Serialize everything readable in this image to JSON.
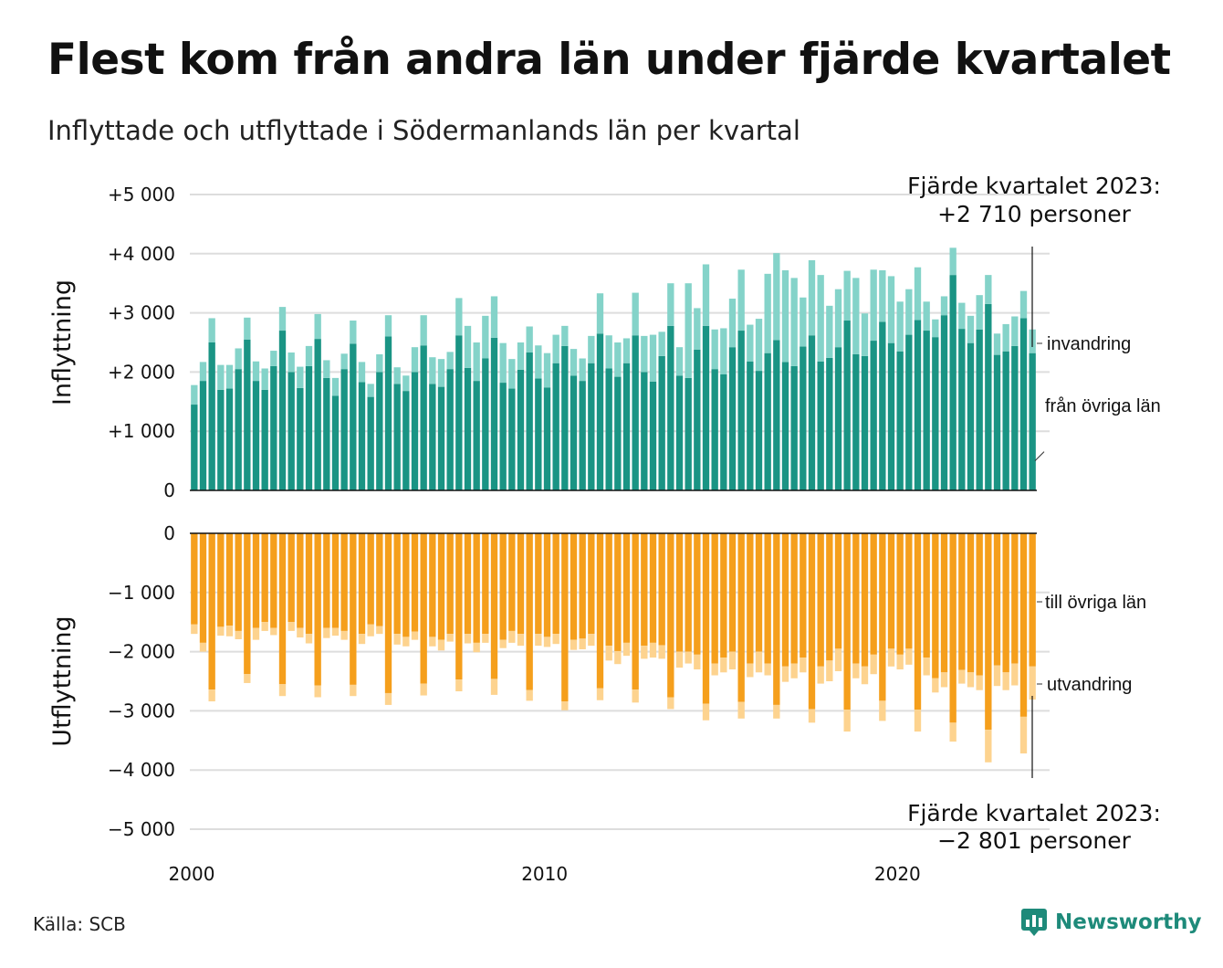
{
  "title": "Flest kom från andra län under fjärde kvartalet",
  "subtitle": "Inflyttade och utflyttade i Södermanlands län per kvartal",
  "source": "Källa: SCB",
  "brand": "Newsworthy",
  "colors": {
    "fran_ovriga_lan": "#1a9484",
    "invandring": "#84d3c9",
    "till_ovriga_lan": "#f59f1c",
    "utvandring": "#fdd38f",
    "brand": "#1e8a7a"
  },
  "chart_data": {
    "type": "bar",
    "stacked": true,
    "grid": true,
    "x_start": "2000 Q1",
    "x_end": "2023 Q4",
    "x_ticks": [
      "2000",
      "2010",
      "2020"
    ],
    "panels": [
      {
        "name": "inflyttning",
        "ylabel": "Inflyttning",
        "ylim": [
          0,
          5000
        ],
        "yticks": [
          "0",
          "+1 000",
          "+2 000",
          "+3 000",
          "+4 000",
          "+5 000"
        ],
        "series": [
          {
            "name": "från övriga län",
            "color": "#1a9484",
            "values": [
              1450,
              1850,
              2500,
              1700,
              1720,
              2050,
              2550,
              1850,
              1700,
              2100,
              2700,
              2000,
              1730,
              2100,
              2560,
              1900,
              1600,
              2050,
              2480,
              1830,
              1580,
              2000,
              2600,
              1800,
              1680,
              2000,
              2450,
              1800,
              1750,
              2050,
              2620,
              2070,
              1850,
              2230,
              2580,
              1820,
              1720,
              2040,
              2330,
              1890,
              1740,
              2150,
              2440,
              1940,
              1850,
              2150,
              2650,
              2060,
              1920,
              2150,
              2620,
              2000,
              1840,
              2270,
              2780,
              1940,
              1900,
              2380,
              2780,
              2050,
              1960,
              2420,
              2700,
              2180,
              2020,
              2320,
              2540,
              2170,
              2100,
              2430,
              2620,
              2180,
              2240,
              2420,
              2870,
              2300,
              2270,
              2530,
              2850,
              2490,
              2350,
              2630,
              2880,
              2700,
              2590,
              2960,
              3640,
              2730,
              2490,
              2720,
              3150,
              2290,
              2350,
              2440,
              2910,
              2320
            ]
          },
          {
            "name": "invandring",
            "color": "#84d3c9",
            "values": [
              330,
              320,
              410,
              420,
              400,
              350,
              370,
              330,
              360,
              260,
              400,
              330,
              360,
              340,
              420,
              300,
              300,
              260,
              390,
              340,
              220,
              300,
              360,
              280,
              260,
              420,
              510,
              450,
              470,
              290,
              630,
              710,
              650,
              720,
              700,
              670,
              500,
              460,
              440,
              560,
              580,
              480,
              340,
              450,
              380,
              460,
              680,
              560,
              580,
              420,
              720,
              610,
              790,
              410,
              720,
              480,
              1600,
              700,
              1040,
              670,
              780,
              820,
              1030,
              620,
              880,
              1340,
              1470,
              1550,
              1490,
              830,
              1270,
              1460,
              880,
              980,
              840,
              1290,
              720,
              1200,
              870,
              1130,
              840,
              770,
              890,
              490,
              300,
              320,
              460,
              440,
              460,
              580,
              490,
              360,
              460,
              500,
              460,
              400
            ]
          }
        ]
      },
      {
        "name": "utflyttning",
        "ylabel": "Utflyttning",
        "ylim": [
          -5000,
          0
        ],
        "yticks": [
          "0",
          "−1 000",
          "−2 000",
          "−3 000",
          "−4 000",
          "−5 000"
        ],
        "series": [
          {
            "name": "till övriga län",
            "color": "#f59f1c",
            "values": [
              -1540,
              -1850,
              -2640,
              -1580,
              -1560,
              -1650,
              -2380,
              -1600,
              -1500,
              -1600,
              -2550,
              -1500,
              -1600,
              -1700,
              -2570,
              -1600,
              -1600,
              -1650,
              -2560,
              -1700,
              -1540,
              -1570,
              -2700,
              -1700,
              -1750,
              -1660,
              -2540,
              -1750,
              -1800,
              -1700,
              -2470,
              -1700,
              -1850,
              -1700,
              -2460,
              -1800,
              -1650,
              -1700,
              -2650,
              -1700,
              -1750,
              -1700,
              -2840,
              -1800,
              -1780,
              -1700,
              -2620,
              -1900,
              -1990,
              -1850,
              -2640,
              -1900,
              -1850,
              -1890,
              -2770,
              -2000,
              -2000,
              -2050,
              -2880,
              -2200,
              -2100,
              -2000,
              -2850,
              -2200,
              -2000,
              -2200,
              -2900,
              -2250,
              -2200,
              -2100,
              -2970,
              -2250,
              -2150,
              -1950,
              -2980,
              -2200,
              -2250,
              -2050,
              -2830,
              -1950,
              -2050,
              -1950,
              -2980,
              -2100,
              -2450,
              -2350,
              -3200,
              -2310,
              -2350,
              -2400,
              -3320,
              -2230,
              -2350,
              -2200,
              -3100,
              -2250
            ]
          },
          {
            "name": "utvandring",
            "color": "#fdd38f",
            "values": [
              -160,
              -150,
              -200,
              -150,
              -180,
              -140,
              -150,
              -200,
              -150,
              -120,
              -200,
              -150,
              -160,
              -160,
              -200,
              -170,
              -130,
              -150,
              -190,
              -170,
              -200,
              -130,
              -200,
              -180,
              -160,
              -140,
              -200,
              -160,
              -180,
              -130,
              -200,
              -160,
              -160,
              -150,
              -270,
              -140,
              -200,
              -200,
              -180,
              -200,
              -170,
              -170,
              -150,
              -170,
              -180,
              -200,
              -200,
              -250,
              -220,
              -220,
              -220,
              -220,
              -250,
              -230,
              -200,
              -270,
              -200,
              -250,
              -280,
              -200,
              -250,
              -300,
              -280,
              -230,
              -350,
              -200,
              -230,
              -260,
              -250,
              -250,
              -230,
              -290,
              -350,
              -380,
              -370,
              -250,
              -300,
              -330,
              -340,
              -300,
              -250,
              -270,
              -370,
              -300,
              -240,
              -250,
              -320,
              -230,
              -250,
              -250,
              -550,
              -350,
              -300,
              -370,
              -620,
              -560
            ]
          }
        ]
      }
    ],
    "legend": {
      "placement": "right"
    },
    "annotations": [
      {
        "panel": "inflyttning",
        "lines": [
          "Fjärde kvartalet 2023:",
          "+2 710 personer"
        ]
      },
      {
        "panel": "utflyttning",
        "lines": [
          "Fjärde kvartalet 2023:",
          "−2 801 personer"
        ]
      }
    ]
  }
}
